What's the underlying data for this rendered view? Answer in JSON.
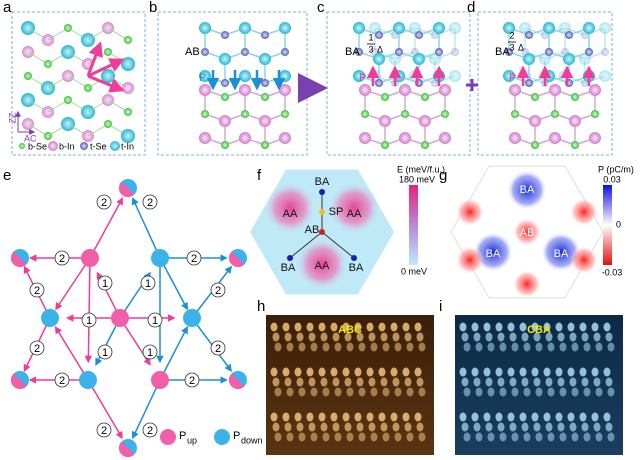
{
  "panel_labels": [
    "a",
    "b",
    "c",
    "d",
    "e",
    "f",
    "g",
    "h",
    "i"
  ],
  "a": {
    "legend": [
      "b-Se",
      "b-In",
      "t-Se",
      "t-In"
    ],
    "axes": [
      "ZZ",
      "AC"
    ]
  },
  "b": {
    "stacking": "AB",
    "polarization": "P"
  },
  "c": {
    "stacking": "BA",
    "polarization": "P",
    "shift": {
      "numerator": "1",
      "denominator": "3",
      "symbol": "Δ"
    }
  },
  "d": {
    "stacking": "BA",
    "polarization": "P",
    "shift": {
      "numerator": "2",
      "denominator": "3",
      "symbol": "Δ"
    }
  },
  "e": {
    "edge_labels": [
      "2",
      "2",
      "2",
      "2",
      "1",
      "1",
      "2",
      "2",
      "1",
      "1",
      "1",
      "1",
      "2",
      "2",
      "2",
      "2",
      "2",
      "2"
    ],
    "legend": [
      {
        "symbol": "P",
        "subscript": "up"
      },
      {
        "symbol": "P",
        "subscript": "down"
      }
    ]
  },
  "f": {
    "colorbar": {
      "title": "E (meV/f.u.)",
      "max": "180 meV",
      "min": "0 meV"
    },
    "sites": [
      "BA",
      "SP",
      "AB",
      "AA",
      "AA",
      "AA",
      "BA",
      "BA"
    ]
  },
  "g": {
    "colorbar": {
      "title": "P (pC/m)",
      "max": "0.03",
      "mid": "0",
      "min": "-0.03"
    },
    "sites": [
      "BA",
      "BA",
      "BA",
      "AB"
    ]
  },
  "h": {
    "label": "ABC"
  },
  "i": {
    "label": "CBA"
  }
}
